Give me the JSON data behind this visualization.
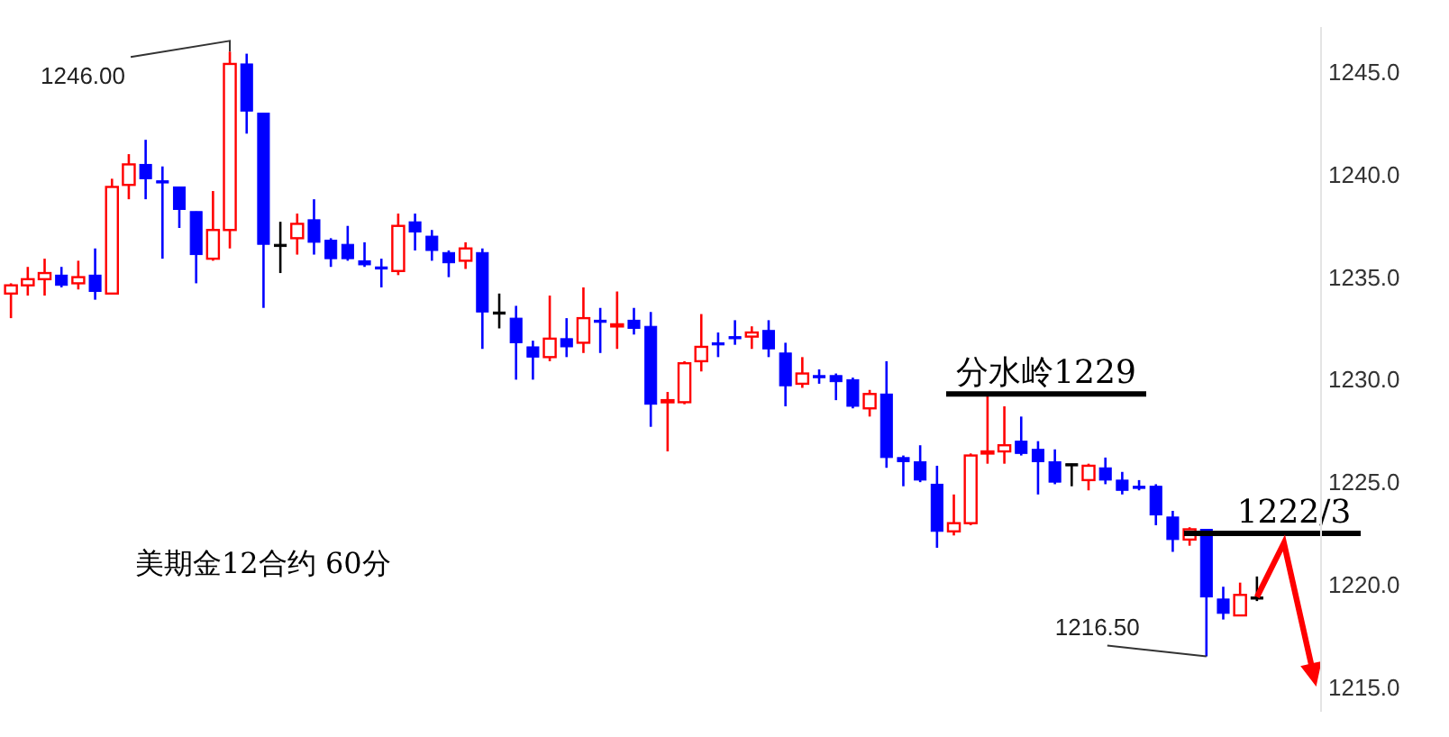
{
  "chart_data": {
    "type": "candlestick",
    "categories": [
      null,
      null,
      null,
      null,
      null,
      null,
      null,
      null,
      null,
      null,
      null,
      null,
      null,
      null,
      null,
      null,
      null,
      null,
      null,
      null,
      null,
      null,
      null,
      null,
      null,
      null,
      null,
      null,
      null,
      null,
      null,
      null,
      null,
      null,
      null,
      null,
      null,
      null,
      null,
      null,
      null,
      null,
      null,
      null,
      null,
      null,
      null,
      null,
      null,
      null,
      null,
      null,
      null,
      null,
      null,
      null,
      null,
      null,
      null,
      null,
      null,
      null,
      null,
      null,
      null,
      null,
      null,
      null,
      null,
      null,
      null,
      null,
      null,
      null,
      null
    ],
    "ohlc": [
      [
        1234.2,
        1234.7,
        1233.0,
        1234.6
      ],
      [
        1234.6,
        1235.5,
        1234.1,
        1234.9
      ],
      [
        1234.9,
        1235.9,
        1234.1,
        1235.2
      ],
      [
        1235.1,
        1235.5,
        1234.5,
        1234.6
      ],
      [
        1234.7,
        1235.8,
        1234.4,
        1235.0
      ],
      [
        1235.1,
        1236.4,
        1233.9,
        1234.3
      ],
      [
        1234.2,
        1239.8,
        1234.2,
        1239.4
      ],
      [
        1239.5,
        1241.0,
        1238.8,
        1240.5
      ],
      [
        1240.5,
        1241.7,
        1238.8,
        1239.8
      ],
      [
        1239.7,
        1240.4,
        1235.9,
        1239.6
      ],
      [
        1239.4,
        1239.4,
        1237.4,
        1238.3
      ],
      [
        1238.2,
        1238.2,
        1234.7,
        1236.1
      ],
      [
        1235.9,
        1239.2,
        1235.8,
        1237.3
      ],
      [
        1237.3,
        1246.0,
        1236.4,
        1245.4
      ],
      [
        1245.4,
        1245.9,
        1242.0,
        1243.1
      ],
      [
        1243.0,
        1243.0,
        1233.5,
        1236.6
      ],
      [
        1236.6,
        1237.7,
        1235.2,
        1236.6
      ],
      [
        1236.9,
        1238.1,
        1236.1,
        1237.6
      ],
      [
        1237.8,
        1238.8,
        1236.1,
        1236.7
      ],
      [
        1236.8,
        1236.9,
        1235.5,
        1235.9
      ],
      [
        1236.6,
        1237.5,
        1235.8,
        1235.9
      ],
      [
        1235.8,
        1236.7,
        1235.5,
        1235.6
      ],
      [
        1235.5,
        1235.9,
        1234.5,
        1235.4
      ],
      [
        1235.3,
        1238.1,
        1235.1,
        1237.5
      ],
      [
        1237.7,
        1238.1,
        1236.3,
        1237.2
      ],
      [
        1237.0,
        1237.3,
        1235.8,
        1236.3
      ],
      [
        1236.2,
        1236.3,
        1235.0,
        1235.7
      ],
      [
        1235.8,
        1236.7,
        1235.4,
        1236.4
      ],
      [
        1236.2,
        1236.4,
        1231.5,
        1233.3
      ],
      [
        1233.3,
        1234.2,
        1232.5,
        1233.3
      ],
      [
        1233.0,
        1233.6,
        1230.0,
        1231.8
      ],
      [
        1231.6,
        1231.9,
        1230.0,
        1231.1
      ],
      [
        1231.1,
        1234.1,
        1230.9,
        1232.0
      ],
      [
        1232.0,
        1233.0,
        1231.1,
        1231.6
      ],
      [
        1231.8,
        1234.5,
        1231.3,
        1233.0
      ],
      [
        1232.9,
        1233.5,
        1231.3,
        1232.8
      ],
      [
        1232.6,
        1234.3,
        1231.5,
        1232.7
      ],
      [
        1232.9,
        1233.5,
        1232.2,
        1232.5
      ],
      [
        1232.6,
        1233.3,
        1227.7,
        1228.8
      ],
      [
        1228.9,
        1229.4,
        1226.5,
        1229.0
      ],
      [
        1228.9,
        1230.9,
        1228.8,
        1230.8
      ],
      [
        1230.9,
        1233.2,
        1230.4,
        1231.6
      ],
      [
        1231.8,
        1232.3,
        1231.1,
        1231.7
      ],
      [
        1232.1,
        1232.9,
        1231.7,
        1232.0
      ],
      [
        1232.1,
        1232.6,
        1231.5,
        1232.3
      ],
      [
        1232.4,
        1232.9,
        1231.1,
        1231.5
      ],
      [
        1231.3,
        1231.8,
        1228.7,
        1229.7
      ],
      [
        1229.8,
        1231.1,
        1229.6,
        1230.3
      ],
      [
        1230.2,
        1230.5,
        1229.8,
        1230.1
      ],
      [
        1230.2,
        1230.3,
        1229.0,
        1229.9
      ],
      [
        1230.0,
        1230.1,
        1228.6,
        1228.7
      ],
      [
        1228.6,
        1229.5,
        1228.2,
        1229.3
      ],
      [
        1229.3,
        1230.9,
        1225.7,
        1226.2
      ],
      [
        1226.2,
        1226.3,
        1224.8,
        1226.0
      ],
      [
        1226.0,
        1226.8,
        1225.0,
        1225.1
      ],
      [
        1224.9,
        1225.8,
        1221.8,
        1222.6
      ],
      [
        1222.6,
        1224.4,
        1222.4,
        1223.0
      ],
      [
        1223.0,
        1226.4,
        1222.9,
        1226.3
      ],
      [
        1226.4,
        1229.2,
        1225.9,
        1226.5
      ],
      [
        1226.5,
        1228.7,
        1225.9,
        1226.8
      ],
      [
        1227.0,
        1228.2,
        1226.3,
        1226.4
      ],
      [
        1226.6,
        1227.0,
        1224.4,
        1226.0
      ],
      [
        1226.0,
        1226.6,
        1224.9,
        1225.0
      ],
      [
        1225.9,
        1225.9,
        1224.8,
        1225.9
      ],
      [
        1225.1,
        1225.9,
        1224.6,
        1225.8
      ],
      [
        1225.7,
        1226.2,
        1224.9,
        1225.1
      ],
      [
        1225.1,
        1225.5,
        1224.4,
        1224.6
      ],
      [
        1224.8,
        1225.1,
        1224.6,
        1224.7
      ],
      [
        1224.8,
        1224.9,
        1222.9,
        1223.4
      ],
      [
        1223.3,
        1223.6,
        1221.6,
        1222.2
      ],
      [
        1222.2,
        1222.8,
        1221.9,
        1222.7
      ],
      [
        1222.7,
        1222.7,
        1216.5,
        1219.4
      ],
      [
        1219.3,
        1219.9,
        1218.3,
        1218.6
      ],
      [
        1218.5,
        1220.1,
        1218.5,
        1219.5
      ],
      [
        1219.4,
        1220.4,
        1219.2,
        1219.4
      ]
    ],
    "colors": [
      "#ff0000",
      "#ff0000",
      "#ff0000",
      "#0000ff",
      "#ff0000",
      "#0000ff",
      "#ff0000",
      "#ff0000",
      "#0000ff",
      "#0000ff",
      "#0000ff",
      "#0000ff",
      "#ff0000",
      "#ff0000",
      "#0000ff",
      "#0000ff",
      "#000000",
      "#ff0000",
      "#0000ff",
      "#0000ff",
      "#0000ff",
      "#0000ff",
      "#0000ff",
      "#ff0000",
      "#0000ff",
      "#0000ff",
      "#0000ff",
      "#ff0000",
      "#0000ff",
      "#000000",
      "#0000ff",
      "#0000ff",
      "#ff0000",
      "#0000ff",
      "#ff0000",
      "#0000ff",
      "#ff0000",
      "#0000ff",
      "#0000ff",
      "#ff0000",
      "#ff0000",
      "#ff0000",
      "#0000ff",
      "#0000ff",
      "#ff0000",
      "#0000ff",
      "#0000ff",
      "#ff0000",
      "#0000ff",
      "#0000ff",
      "#0000ff",
      "#ff0000",
      "#0000ff",
      "#0000ff",
      "#0000ff",
      "#0000ff",
      "#ff0000",
      "#ff0000",
      "#ff0000",
      "#ff0000",
      "#0000ff",
      "#0000ff",
      "#0000ff",
      "#000000",
      "#ff0000",
      "#0000ff",
      "#0000ff",
      "#0000ff",
      "#0000ff",
      "#0000ff",
      "#ff0000",
      "#0000ff",
      "#0000ff",
      "#ff0000",
      "#000000"
    ],
    "ylim": [
      1213.8,
      1247.2
    ],
    "yticks": [
      {
        "value": 1215,
        "label": "1215.0"
      },
      {
        "value": 1220,
        "label": "1220.0"
      },
      {
        "value": 1225,
        "label": "1225.0"
      },
      {
        "value": 1230,
        "label": "1230.0"
      },
      {
        "value": 1235,
        "label": "1235.0"
      },
      {
        "value": 1240,
        "label": "1240.0"
      },
      {
        "value": 1245,
        "label": "1245.0"
      }
    ],
    "tick_labels": "y",
    "grid": false,
    "ref_lines": [
      {
        "axis": "y",
        "value": 1229.3,
        "label": "分水岭1229",
        "color": "#000000"
      },
      {
        "axis": "y",
        "value": 1222.5,
        "label": "1222/3",
        "color": "#000000"
      }
    ],
    "annotations": [
      "1246.00",
      "1216.50",
      "美期金12合约 60分"
    ]
  }
}
